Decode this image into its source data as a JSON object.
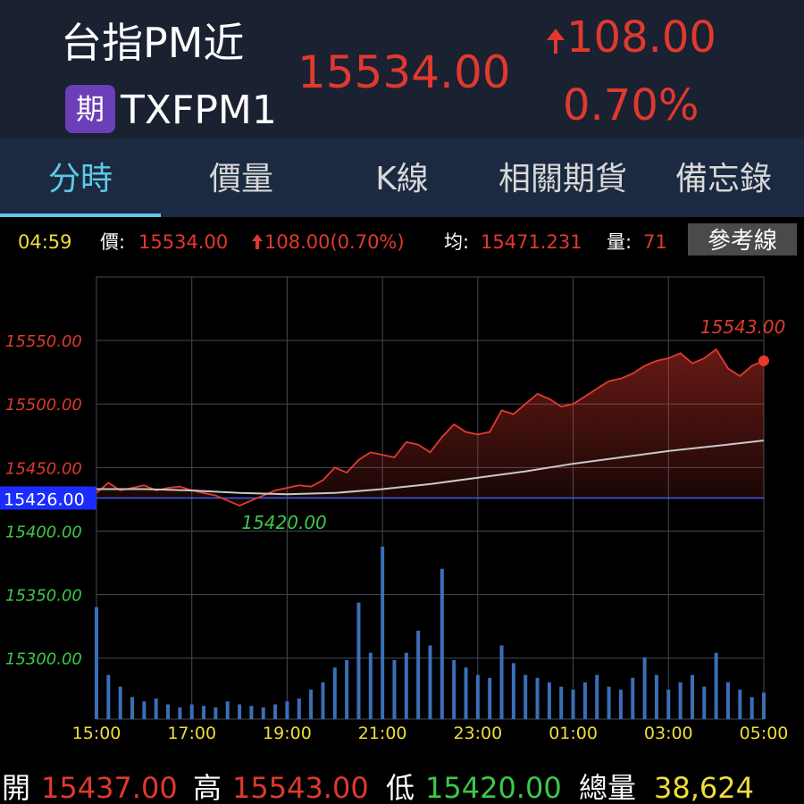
{
  "header": {
    "title": "台指PM近",
    "badge": "期",
    "code": "TXFPM1",
    "price": "15534.00",
    "change": "108.00",
    "change_pct": "0.70%"
  },
  "tabs": [
    "分時",
    "價量",
    "K線",
    "相關期貨",
    "備忘錄"
  ],
  "info": {
    "time": "04:59",
    "price_label": "價:",
    "price": "15534.00",
    "change": "108.00(0.70%)",
    "avg_label": "均:",
    "avg": "15471.231",
    "vol_label": "量:",
    "vol": "71",
    "button": "參考線"
  },
  "chart_data": {
    "type": "line",
    "x": [
      0,
      15,
      30,
      45,
      60,
      75,
      90,
      105,
      120,
      135,
      150,
      165,
      180,
      195,
      210,
      225,
      240,
      255,
      270,
      285,
      300,
      315,
      330,
      345,
      360,
      375,
      390,
      405,
      420,
      435,
      450,
      465,
      480,
      495,
      510,
      525,
      540,
      555,
      570,
      585,
      600,
      615,
      630,
      645,
      660,
      675,
      690,
      705,
      720,
      735,
      750,
      765,
      780,
      795,
      810,
      825,
      840
    ],
    "xlim": [
      0,
      840
    ],
    "xticks": [
      {
        "value": 0,
        "label": "15:00"
      },
      {
        "value": 120,
        "label": "17:00"
      },
      {
        "value": 240,
        "label": "19:00"
      },
      {
        "value": 360,
        "label": "21:00"
      },
      {
        "value": 480,
        "label": "23:00"
      },
      {
        "value": 600,
        "label": "01:00"
      },
      {
        "value": 720,
        "label": "03:00"
      },
      {
        "value": 840,
        "label": "05:00"
      }
    ],
    "ylim": [
      15252,
      15600
    ],
    "yticks": [
      {
        "value": 15300,
        "label": "15300.00"
      },
      {
        "value": 15350,
        "label": "15350.00"
      },
      {
        "value": 15400,
        "label": "15400.00"
      },
      {
        "value": 15450,
        "label": "15450.00"
      },
      {
        "value": 15500,
        "label": "15500.00"
      },
      {
        "value": 15550,
        "label": "15550.00"
      }
    ],
    "grid": true,
    "reference": {
      "value": 15426,
      "label": "15426.00",
      "up_color": "#e0392e",
      "down_color": "#3cc84a"
    },
    "series": [
      {
        "color": "#e53a2e",
        "values": [
          15430,
          15438,
          15432,
          15434,
          15436,
          15432,
          15434,
          15435,
          15432,
          15430,
          15428,
          15424,
          15420,
          15424,
          15428,
          15432,
          15434,
          15436,
          15435,
          15440,
          15450,
          15446,
          15456,
          15462,
          15460,
          15458,
          15470,
          15468,
          15462,
          15474,
          15484,
          15478,
          15476,
          15478,
          15495,
          15492,
          15500,
          15508,
          15504,
          15498,
          15500,
          15506,
          15512,
          15518,
          15520,
          15524,
          15530,
          15534,
          15536,
          15540,
          15532,
          15536,
          15543,
          15528,
          15522,
          15530,
          15534
        ]
      },
      {
        "color": "#c8c8c8",
        "x": [
          0,
          60,
          120,
          180,
          240,
          300,
          360,
          420,
          480,
          540,
          600,
          660,
          720,
          780,
          840
        ],
        "values": [
          15433,
          15433,
          15432,
          15430,
          15429,
          15430,
          15433,
          15437,
          15442,
          15447,
          15453,
          15458,
          15463,
          15467,
          15471.231
        ]
      }
    ],
    "volume": {
      "color": "#3a6fb8",
      "vlim": [
        0,
        300
      ],
      "values": [
        76,
        30,
        22,
        15,
        12,
        14,
        10,
        8,
        10,
        9,
        8,
        12,
        10,
        9,
        8,
        10,
        12,
        14,
        20,
        25,
        35,
        40,
        79,
        45,
        117,
        40,
        45,
        60,
        50,
        102,
        40,
        35,
        30,
        28,
        50,
        38,
        30,
        28,
        25,
        22,
        20,
        25,
        30,
        22,
        20,
        28,
        42,
        30,
        20,
        25,
        30,
        22,
        45,
        25,
        20,
        15,
        18
      ]
    },
    "high": {
      "x": 780,
      "value": 15543,
      "label": "15543.00"
    },
    "low": {
      "x": 180,
      "value": 15420,
      "label": "15420.00"
    }
  },
  "footer": {
    "open_label": "開",
    "open": "15437.00",
    "high_label": "高",
    "high": "15543.00",
    "low_label": "低",
    "low": "15420.00",
    "total_label": "總量",
    "total": "38,624"
  }
}
